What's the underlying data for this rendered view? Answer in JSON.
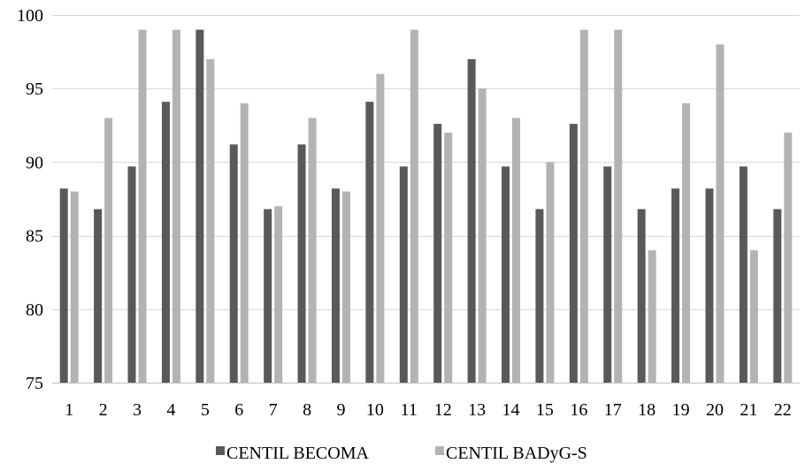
{
  "chart_data": {
    "type": "bar",
    "title": "",
    "xlabel": "",
    "ylabel": "",
    "categories": [
      "1",
      "2",
      "3",
      "4",
      "5",
      "6",
      "7",
      "8",
      "9",
      "10",
      "11",
      "12",
      "13",
      "14",
      "15",
      "16",
      "17",
      "18",
      "19",
      "20",
      "21",
      "22"
    ],
    "ylim": [
      75,
      100
    ],
    "yticks": [
      75,
      80,
      85,
      90,
      95,
      100
    ],
    "grid": true,
    "legend_position": "bottom",
    "series": [
      {
        "name": "CENTIL BECOMA",
        "color": "#595959",
        "values": [
          88.2,
          86.8,
          89.7,
          94.1,
          99,
          91.2,
          86.8,
          91.2,
          88.2,
          94.1,
          89.7,
          92.6,
          97,
          89.7,
          86.8,
          92.6,
          89.7,
          86.8,
          88.2,
          88.2,
          89.7,
          86.8
        ]
      },
      {
        "name": "CENTIL BADyG-S",
        "color": "#b3b3b3",
        "values": [
          88,
          93,
          99,
          99,
          97,
          94,
          87,
          93,
          88,
          96,
          99,
          92,
          95,
          93,
          90,
          99,
          99,
          84,
          94,
          98,
          84,
          92
        ]
      }
    ]
  }
}
